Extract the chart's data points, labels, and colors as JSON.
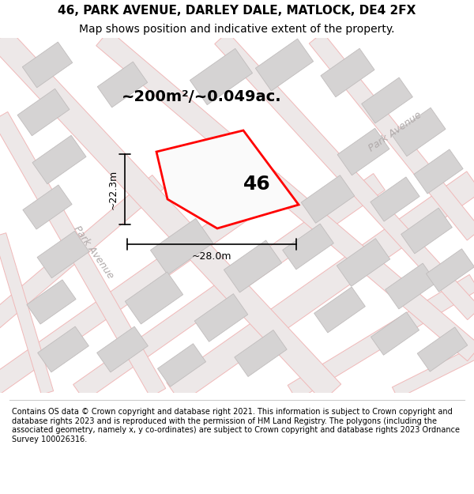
{
  "title_line1": "46, PARK AVENUE, DARLEY DALE, MATLOCK, DE4 2FX",
  "title_line2": "Map shows position and indicative extent of the property.",
  "area_label": "~200m²/~0.049ac.",
  "property_number": "46",
  "width_label": "~28.0m",
  "height_label": "~22.3m",
  "footer_text": "Contains OS data © Crown copyright and database right 2021. This information is subject to Crown copyright and database rights 2023 and is reproduced with the permission of HM Land Registry. The polygons (including the associated geometry, namely x, y co-ordinates) are subject to Crown copyright and database rights 2023 Ordnance Survey 100026316.",
  "map_bg": "#f2f0f0",
  "road_line_color": "#f0b8b8",
  "road_fill_color": "#ede8e8",
  "building_color": "#d5d3d3",
  "building_edge": "#c0bcbc",
  "property_color": "#ff0000",
  "park_avenue_color": "#b0aaaa",
  "title_fontsize": 11,
  "subtitle_fontsize": 10,
  "area_fontsize": 14,
  "dim_fontsize": 9,
  "road_label_fontsize": 9,
  "property_num_fontsize": 18
}
